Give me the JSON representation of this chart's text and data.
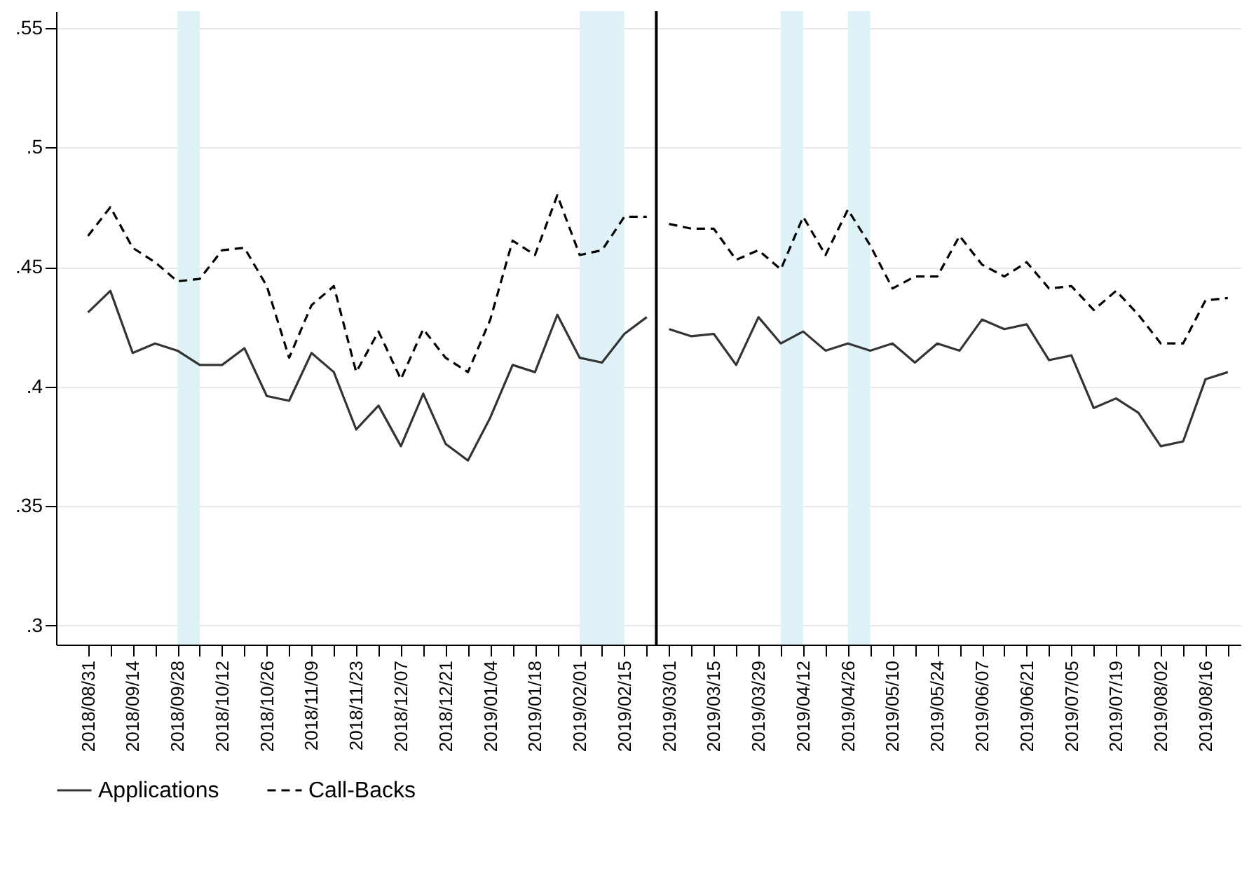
{
  "chart_data": {
    "type": "line",
    "x": [
      "2018-08-31",
      "2018-09-07",
      "2018-09-14",
      "2018-09-21",
      "2018-09-28",
      "2018-10-05",
      "2018-10-12",
      "2018-10-19",
      "2018-10-26",
      "2018-11-02",
      "2018-11-09",
      "2018-11-16",
      "2018-11-23",
      "2018-11-30",
      "2018-12-07",
      "2018-12-14",
      "2018-12-21",
      "2018-12-28",
      "2019-01-04",
      "2019-01-11",
      "2019-01-18",
      "2019-01-25",
      "2019-02-01",
      "2019-02-08",
      "2019-02-15",
      "2019-02-22",
      "2019-03-01",
      "2019-03-08",
      "2019-03-15",
      "2019-03-22",
      "2019-03-29",
      "2019-04-05",
      "2019-04-12",
      "2019-04-19",
      "2019-04-26",
      "2019-05-03",
      "2019-05-10",
      "2019-05-17",
      "2019-05-24",
      "2019-05-31",
      "2019-06-07",
      "2019-06-14",
      "2019-06-21",
      "2019-06-28",
      "2019-07-05",
      "2019-07-12",
      "2019-07-19",
      "2019-07-26",
      "2019-08-02",
      "2019-08-09",
      "2019-08-16",
      "2019-08-23"
    ],
    "series": [
      {
        "name": "Applications",
        "color": "#333333",
        "line_style": "solid",
        "values": [
          0.431,
          0.44,
          0.414,
          0.418,
          0.415,
          0.409,
          0.409,
          0.416,
          0.396,
          0.394,
          0.414,
          0.406,
          0.382,
          0.392,
          0.375,
          0.397,
          0.376,
          0.369,
          0.387,
          0.409,
          0.406,
          0.43,
          0.412,
          0.41,
          0.422,
          0.429,
          0.424,
          0.421,
          0.422,
          0.409,
          0.429,
          0.418,
          0.423,
          0.415,
          0.418,
          0.415,
          0.418,
          0.41,
          0.418,
          0.415,
          0.428,
          0.424,
          0.426,
          0.411,
          0.413,
          0.391,
          0.395,
          0.389,
          0.375,
          0.377,
          0.403,
          0.406
        ]
      },
      {
        "name": "Call-Backs",
        "color": "#000000",
        "line_style": "dashed",
        "values": [
          0.463,
          0.475,
          0.458,
          0.452,
          0.444,
          0.445,
          0.457,
          0.458,
          0.442,
          0.412,
          0.434,
          0.442,
          0.406,
          0.423,
          0.403,
          0.424,
          0.412,
          0.406,
          0.428,
          0.461,
          0.455,
          0.48,
          0.455,
          0.457,
          0.471,
          0.471,
          0.468,
          0.466,
          0.466,
          0.453,
          0.457,
          0.449,
          0.471,
          0.455,
          0.474,
          0.459,
          0.441,
          0.446,
          0.446,
          0.463,
          0.451,
          0.446,
          0.452,
          0.441,
          0.442,
          0.432,
          0.44,
          0.43,
          0.418,
          0.418,
          0.436,
          0.437
        ]
      }
    ],
    "xlim": [
      "2018-08-21",
      "2019-08-27"
    ],
    "xticks": [
      {
        "value": "2018-08-31",
        "label": "2018/08/31"
      },
      {
        "value": "2018-09-07",
        "label": null
      },
      {
        "value": "2018-09-14",
        "label": "2018/09/14"
      },
      {
        "value": "2018-09-21",
        "label": null
      },
      {
        "value": "2018-09-28",
        "label": "2018/09/28"
      },
      {
        "value": "2018-10-05",
        "label": null
      },
      {
        "value": "2018-10-12",
        "label": "2018/10/12"
      },
      {
        "value": "2018-10-19",
        "label": null
      },
      {
        "value": "2018-10-26",
        "label": "2018/10/26"
      },
      {
        "value": "2018-11-02",
        "label": null
      },
      {
        "value": "2018-11-09",
        "label": "2018/11/09"
      },
      {
        "value": "2018-11-16",
        "label": null
      },
      {
        "value": "2018-11-23",
        "label": "2018/11/23"
      },
      {
        "value": "2018-11-30",
        "label": null
      },
      {
        "value": "2018-12-07",
        "label": "2018/12/07"
      },
      {
        "value": "2018-12-14",
        "label": null
      },
      {
        "value": "2018-12-21",
        "label": "2018/12/21"
      },
      {
        "value": "2018-12-28",
        "label": null
      },
      {
        "value": "2019-01-04",
        "label": "2019/01/04"
      },
      {
        "value": "2019-01-11",
        "label": null
      },
      {
        "value": "2019-01-18",
        "label": "2019/01/18"
      },
      {
        "value": "2019-01-25",
        "label": null
      },
      {
        "value": "2019-02-01",
        "label": "2019/02/01"
      },
      {
        "value": "2019-02-08",
        "label": null
      },
      {
        "value": "2019-02-15",
        "label": "2019/02/15"
      },
      {
        "value": "2019-02-22",
        "label": null
      },
      {
        "value": "2019-03-01",
        "label": "2019/03/01"
      },
      {
        "value": "2019-03-08",
        "label": null
      },
      {
        "value": "2019-03-15",
        "label": "2019/03/15"
      },
      {
        "value": "2019-03-22",
        "label": null
      },
      {
        "value": "2019-03-29",
        "label": "2019/03/29"
      },
      {
        "value": "2019-04-05",
        "label": null
      },
      {
        "value": "2019-04-12",
        "label": "2019/04/12"
      },
      {
        "value": "2019-04-19",
        "label": null
      },
      {
        "value": "2019-04-26",
        "label": "2019/04/26"
      },
      {
        "value": "2019-05-03",
        "label": null
      },
      {
        "value": "2019-05-10",
        "label": "2019/05/10"
      },
      {
        "value": "2019-05-17",
        "label": null
      },
      {
        "value": "2019-05-24",
        "label": "2019/05/24"
      },
      {
        "value": "2019-05-31",
        "label": null
      },
      {
        "value": "2019-06-07",
        "label": "2019/06/07"
      },
      {
        "value": "2019-06-14",
        "label": null
      },
      {
        "value": "2019-06-21",
        "label": "2019/06/21"
      },
      {
        "value": "2019-06-28",
        "label": null
      },
      {
        "value": "2019-07-05",
        "label": "2019/07/05"
      },
      {
        "value": "2019-07-12",
        "label": null
      },
      {
        "value": "2019-07-19",
        "label": "2019/07/19"
      },
      {
        "value": "2019-07-26",
        "label": null
      },
      {
        "value": "2019-08-02",
        "label": "2019/08/02"
      },
      {
        "value": "2019-08-09",
        "label": null
      },
      {
        "value": "2019-08-16",
        "label": "2019/08/16"
      },
      {
        "value": "2019-08-23",
        "label": null
      }
    ],
    "ylim": [
      0.292,
      0.557
    ],
    "yticks": [
      {
        "value": 0.3,
        "label": ".3"
      },
      {
        "value": 0.35,
        "label": ".35"
      },
      {
        "value": 0.4,
        "label": ".4"
      },
      {
        "value": 0.45,
        "label": ".45"
      },
      {
        "value": 0.5,
        "label": ".5"
      },
      {
        "value": 0.55,
        "label": ".55"
      }
    ],
    "ref_lines": [
      {
        "axis": "x",
        "value": "2019-02-25",
        "color": "#000000"
      }
    ],
    "bands": [
      {
        "axis": "x",
        "from": "2018-09-28",
        "to": "2018-10-05",
        "color": "#dff2f7"
      },
      {
        "axis": "x",
        "from": "2019-02-01",
        "to": "2019-02-15",
        "color": "#dff2f7"
      },
      {
        "axis": "x",
        "from": "2019-04-05",
        "to": "2019-04-12",
        "color": "#dff2f7"
      },
      {
        "axis": "x",
        "from": "2019-04-26",
        "to": "2019-05-03",
        "color": "#dff2f7"
      }
    ],
    "grid": "y",
    "legend": "bottom",
    "marker": "none"
  }
}
